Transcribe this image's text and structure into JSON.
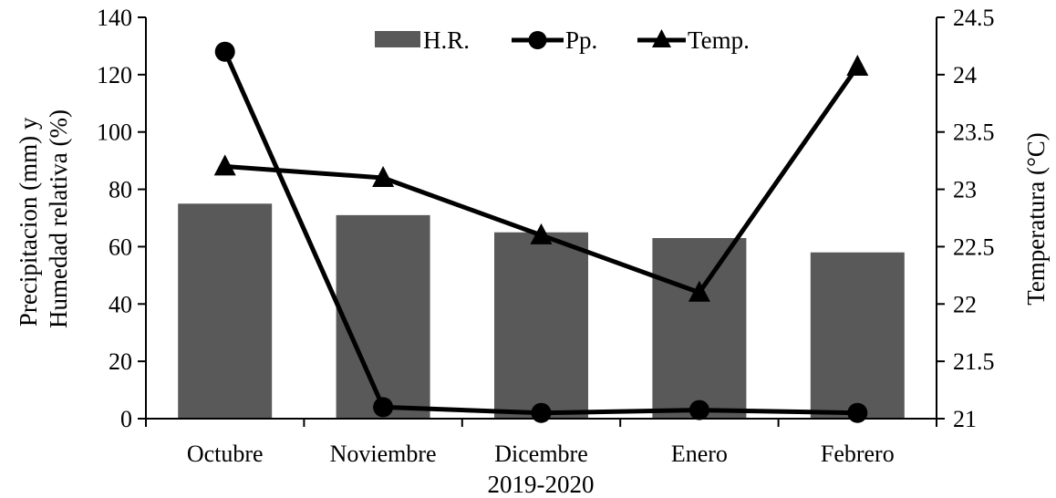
{
  "chart_data": {
    "type": "bar",
    "categories": [
      "Octubre",
      "Noviembre",
      "Dicembre",
      "Enero",
      "Febrero"
    ],
    "xlabel": "2019-2020",
    "ylabel_left": [
      "Precipitacion (mm) y",
      "Humedad relativa (%)"
    ],
    "ylabel_right": "Temperatura (°C)",
    "ylim_left": [
      0,
      140
    ],
    "yticks_left": [
      "0",
      "20",
      "40",
      "60",
      "80",
      "100",
      "120",
      "140"
    ],
    "ylim_right": [
      21,
      24.5
    ],
    "yticks_right": [
      "21",
      "21.5",
      "22",
      "22.5",
      "23",
      "23.5",
      "24",
      "24.5"
    ],
    "grid": false,
    "legend_position": "top",
    "series": [
      {
        "name": "H.R.",
        "type": "bar",
        "axis": "left",
        "values": [
          75,
          71,
          65,
          63,
          58
        ],
        "color": "#595959"
      },
      {
        "name": "Pp.",
        "type": "line",
        "marker": "circle",
        "axis": "left",
        "values": [
          128,
          4,
          2,
          3,
          2
        ],
        "color": "#000000"
      },
      {
        "name": "Temp.",
        "type": "line",
        "marker": "triangle",
        "axis": "right",
        "values": [
          23.2,
          23.1,
          22.6,
          22.1,
          24.07
        ],
        "color": "#000000"
      }
    ]
  }
}
